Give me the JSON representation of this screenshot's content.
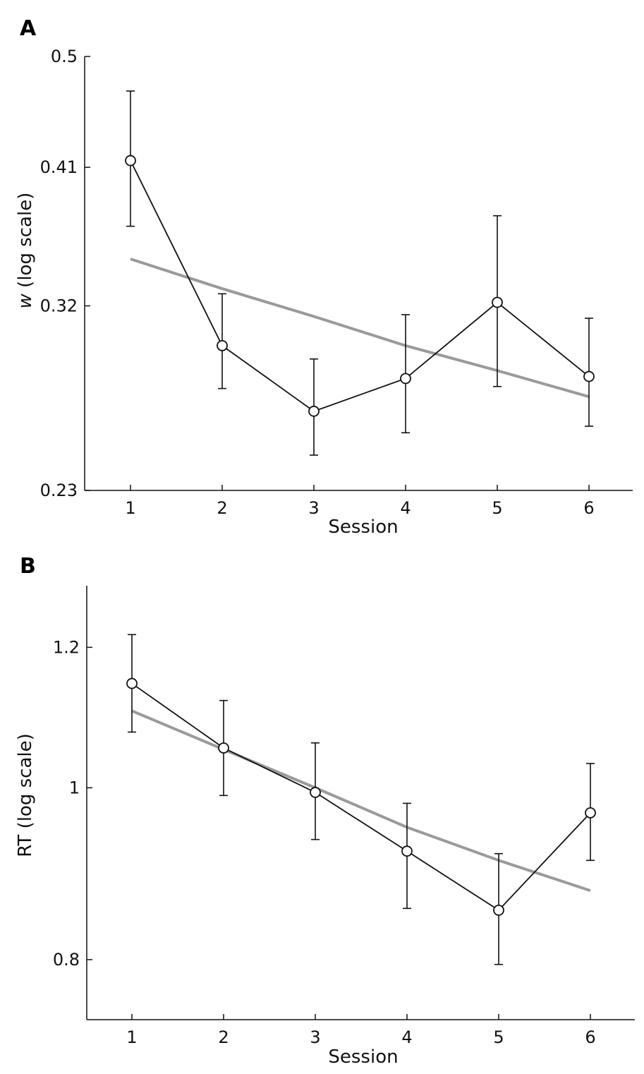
{
  "chart_data": [
    {
      "panel": "A",
      "type": "line",
      "scale": "log",
      "xlabel": "Session",
      "ylabel_italic": "w",
      "ylabel_rest": " (log scale)",
      "yticks": [
        0.23,
        0.32,
        0.41,
        0.5
      ],
      "ytick_labels": [
        "0.23",
        "0.32",
        "0.41",
        "0.5"
      ],
      "ylim": [
        0.23,
        0.5
      ],
      "x": [
        1,
        2,
        3,
        4,
        5,
        6
      ],
      "xtick_labels": [
        "1",
        "2",
        "3",
        "4",
        "5",
        "6"
      ],
      "series": [
        {
          "name": "mean",
          "values": [
            0.415,
            0.298,
            0.265,
            0.281,
            0.322,
            0.282
          ],
          "err_low": [
            0.369,
            0.276,
            0.245,
            0.255,
            0.277,
            0.258
          ],
          "err_high": [
            0.47,
            0.327,
            0.291,
            0.315,
            0.376,
            0.313
          ]
        },
        {
          "name": "fit",
          "values": [
            0.348,
            0.33,
            0.314,
            0.298,
            0.285,
            0.272
          ]
        }
      ]
    },
    {
      "panel": "B",
      "type": "line",
      "scale": "log",
      "xlabel": "Session",
      "ylabel": "RT (log scale)",
      "yticks": [
        0.8,
        1,
        1.2
      ],
      "ytick_labels": [
        "0.8",
        "1",
        "1.2"
      ],
      "ylim": [
        0.74,
        1.3
      ],
      "x": [
        1,
        2,
        3,
        4,
        5,
        6
      ],
      "xtick_labels": [
        "1",
        "2",
        "3",
        "4",
        "5",
        "6"
      ],
      "series": [
        {
          "name": "mean",
          "values": [
            1.145,
            1.053,
            0.994,
            0.921,
            0.853,
            0.968
          ],
          "err_low": [
            1.075,
            0.99,
            0.935,
            0.855,
            0.795,
            0.91
          ],
          "err_high": [
            1.22,
            1.12,
            1.06,
            0.98,
            0.918,
            1.032
          ]
        },
        {
          "name": "fit",
          "values": [
            1.105,
            1.051,
            1.0,
            0.95,
            0.91,
            0.875
          ]
        }
      ]
    }
  ]
}
